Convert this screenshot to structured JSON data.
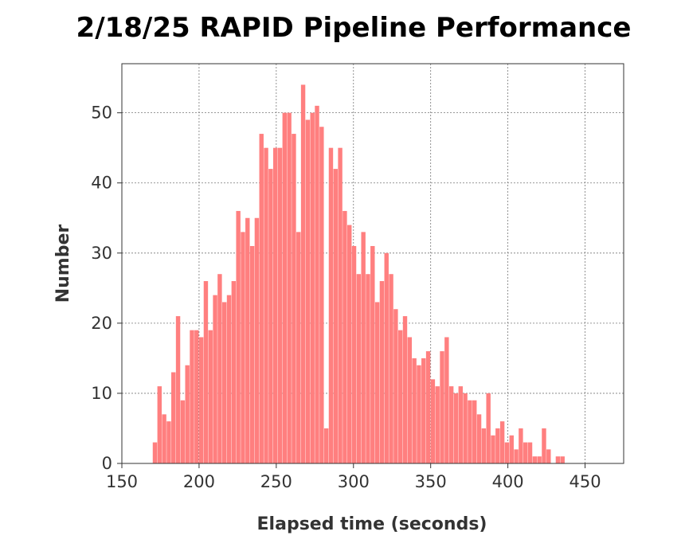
{
  "chart_data": {
    "type": "bar",
    "title": "2/18/25 RAPID Pipeline Performance",
    "xlabel": "Elapsed time (seconds)",
    "ylabel": "Number",
    "xlim": [
      150,
      475
    ],
    "ylim": [
      0,
      57
    ],
    "xticks": [
      150,
      200,
      250,
      300,
      350,
      400,
      450
    ],
    "yticks": [
      0,
      10,
      20,
      30,
      40,
      50
    ],
    "grid": true,
    "bar_color": "#ff7f7f",
    "bin_width": 3,
    "x": [
      170,
      173,
      176,
      179,
      182,
      185,
      188,
      191,
      194,
      197,
      200,
      203,
      206,
      209,
      212,
      215,
      218,
      221,
      224,
      227,
      230,
      233,
      236,
      239,
      242,
      245,
      248,
      251,
      254,
      257,
      260,
      263,
      266,
      269,
      272,
      275,
      278,
      281,
      284,
      287,
      290,
      293,
      296,
      299,
      302,
      305,
      308,
      311,
      314,
      317,
      320,
      323,
      326,
      329,
      332,
      335,
      338,
      341,
      344,
      347,
      350,
      353,
      356,
      359,
      362,
      365,
      368,
      371,
      374,
      377,
      380,
      383,
      386,
      389,
      392,
      395,
      398,
      401,
      404,
      407,
      410,
      413,
      416,
      419,
      422,
      425,
      428,
      431,
      434,
      437,
      440,
      443,
      446,
      449
    ],
    "values": [
      3,
      11,
      7,
      6,
      13,
      21,
      9,
      14,
      19,
      19,
      18,
      26,
      19,
      24,
      27,
      23,
      24,
      26,
      36,
      33,
      35,
      31,
      35,
      47,
      45,
      42,
      45,
      45,
      50,
      50,
      47,
      33,
      54,
      49,
      50,
      51,
      48,
      5,
      45,
      42,
      45,
      36,
      34,
      31,
      27,
      33,
      27,
      31,
      23,
      26,
      30,
      27,
      22,
      19,
      21,
      18,
      15,
      14,
      15,
      16,
      12,
      11,
      16,
      18,
      11,
      10,
      11,
      10,
      9,
      9,
      7,
      5,
      10,
      4,
      5,
      6,
      3,
      4,
      2,
      5,
      3,
      3,
      1,
      1,
      5,
      2,
      0,
      1,
      1,
      0,
      0,
      0,
      0,
      0
    ]
  }
}
